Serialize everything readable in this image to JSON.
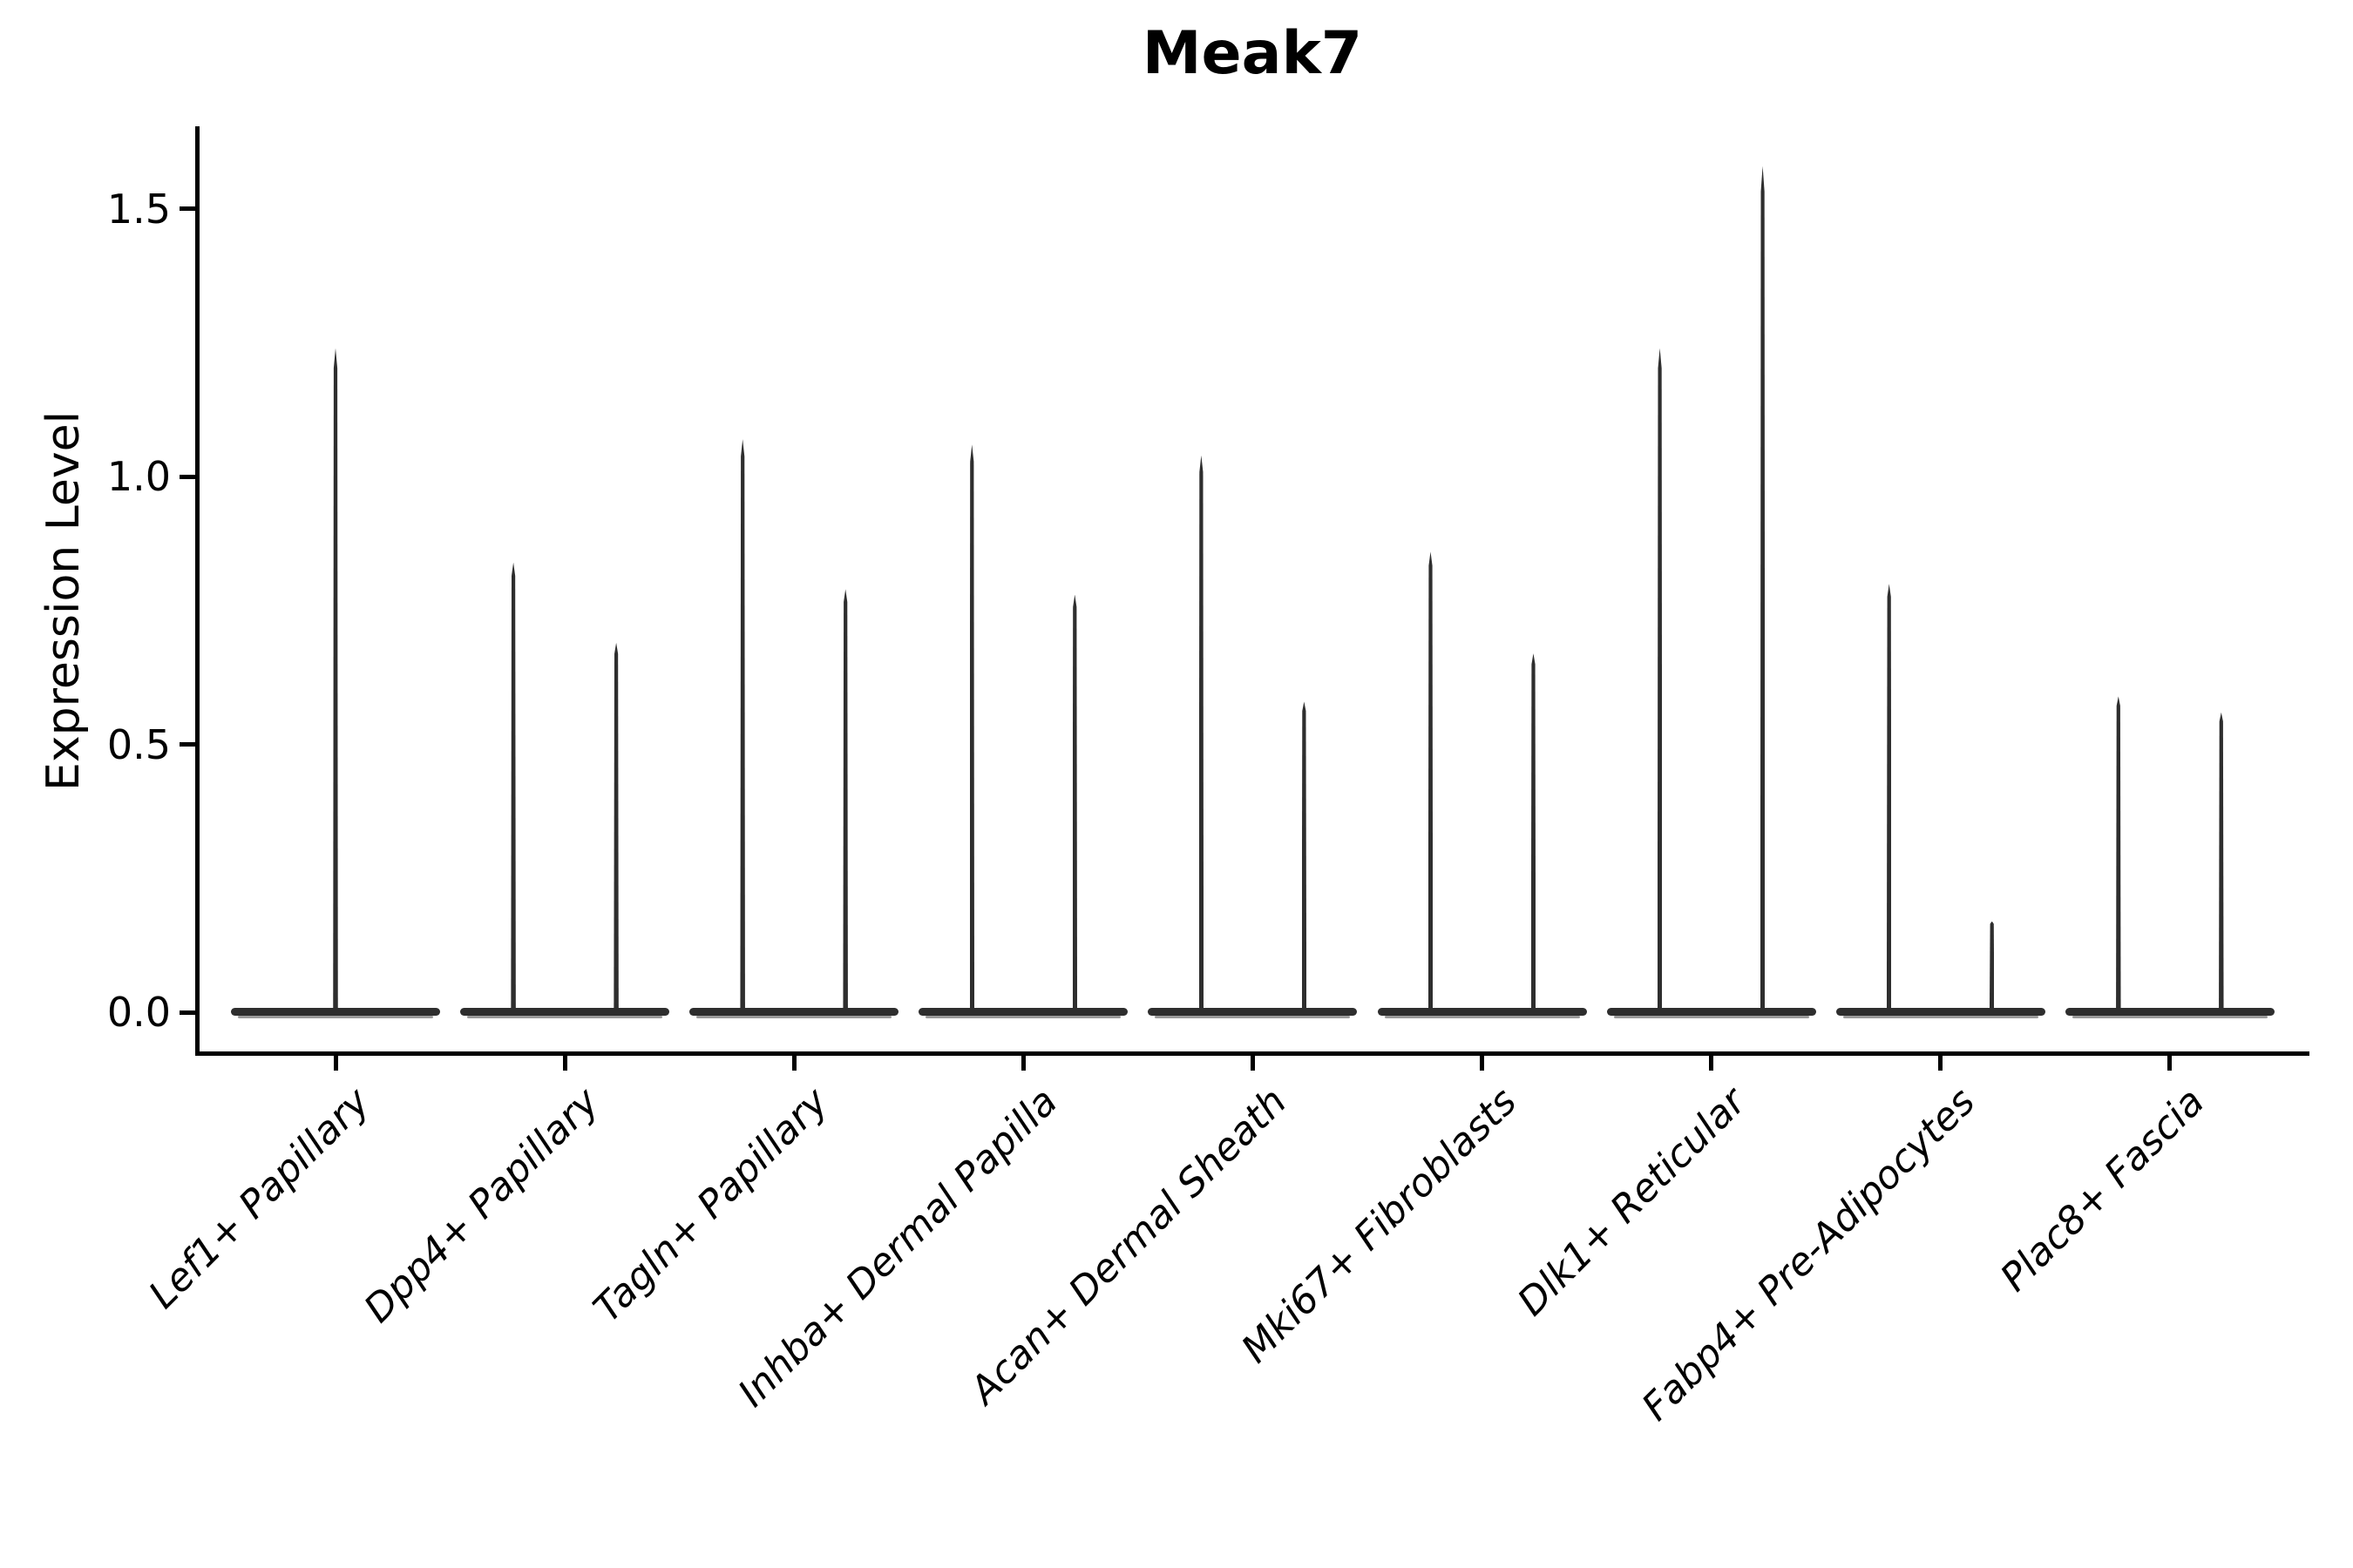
{
  "chart_data": {
    "type": "violin",
    "title": "Meak7",
    "xlabel": "",
    "ylabel": "Expression Level",
    "ylim": [
      -0.08,
      1.65
    ],
    "yticks": [
      0.0,
      0.5,
      1.0,
      1.5
    ],
    "ytick_labels": [
      "0.0",
      "0.5",
      "1.0",
      "1.5"
    ],
    "grid": false,
    "legend": false,
    "violin_color": "#2e2e2e",
    "fill_hint_color": "#9b9b9b",
    "baseline_value": 0.0,
    "categories": [
      "Lef1+ Papillary",
      "Dpp4+ Papillary",
      "Tagln+ Papillary",
      "Inhba+ Dermal Papilla",
      "Acan+ Dermal Sheath",
      "Mki67+ Fibroblasts",
      "Dlk1+ Reticular",
      "Fabp4+ Pre-Adipocytes",
      "Plac8+ Fascia"
    ],
    "violins": [
      {
        "category": "Lef1+ Papillary",
        "spikes": [
          {
            "position": "center",
            "max": 1.24
          }
        ]
      },
      {
        "category": "Dpp4+ Papillary",
        "spikes": [
          {
            "position": "left",
            "max": 0.84
          },
          {
            "position": "right",
            "max": 0.69
          }
        ]
      },
      {
        "category": "Tagln+ Papillary",
        "spikes": [
          {
            "position": "left",
            "max": 1.07
          },
          {
            "position": "right",
            "max": 0.79
          }
        ]
      },
      {
        "category": "Inhba+ Dermal Papilla",
        "spikes": [
          {
            "position": "left",
            "max": 1.06
          },
          {
            "position": "right",
            "max": 0.78
          }
        ]
      },
      {
        "category": "Acan+ Dermal Sheath",
        "spikes": [
          {
            "position": "left",
            "max": 1.04
          },
          {
            "position": "right",
            "max": 0.58
          }
        ]
      },
      {
        "category": "Mki67+ Fibroblasts",
        "spikes": [
          {
            "position": "left",
            "max": 0.86
          },
          {
            "position": "right",
            "max": 0.67
          }
        ]
      },
      {
        "category": "Dlk1+ Reticular",
        "spikes": [
          {
            "position": "left",
            "max": 1.24
          },
          {
            "position": "right",
            "max": 1.58
          }
        ]
      },
      {
        "category": "Fabp4+ Pre-Adipocytes",
        "spikes": [
          {
            "position": "left",
            "max": 0.8
          },
          {
            "position": "right",
            "max": 0.17
          }
        ]
      },
      {
        "category": "Plac8+ Fascia",
        "spikes": [
          {
            "position": "left",
            "max": 0.59
          },
          {
            "position": "right",
            "max": 0.56
          }
        ]
      }
    ]
  }
}
